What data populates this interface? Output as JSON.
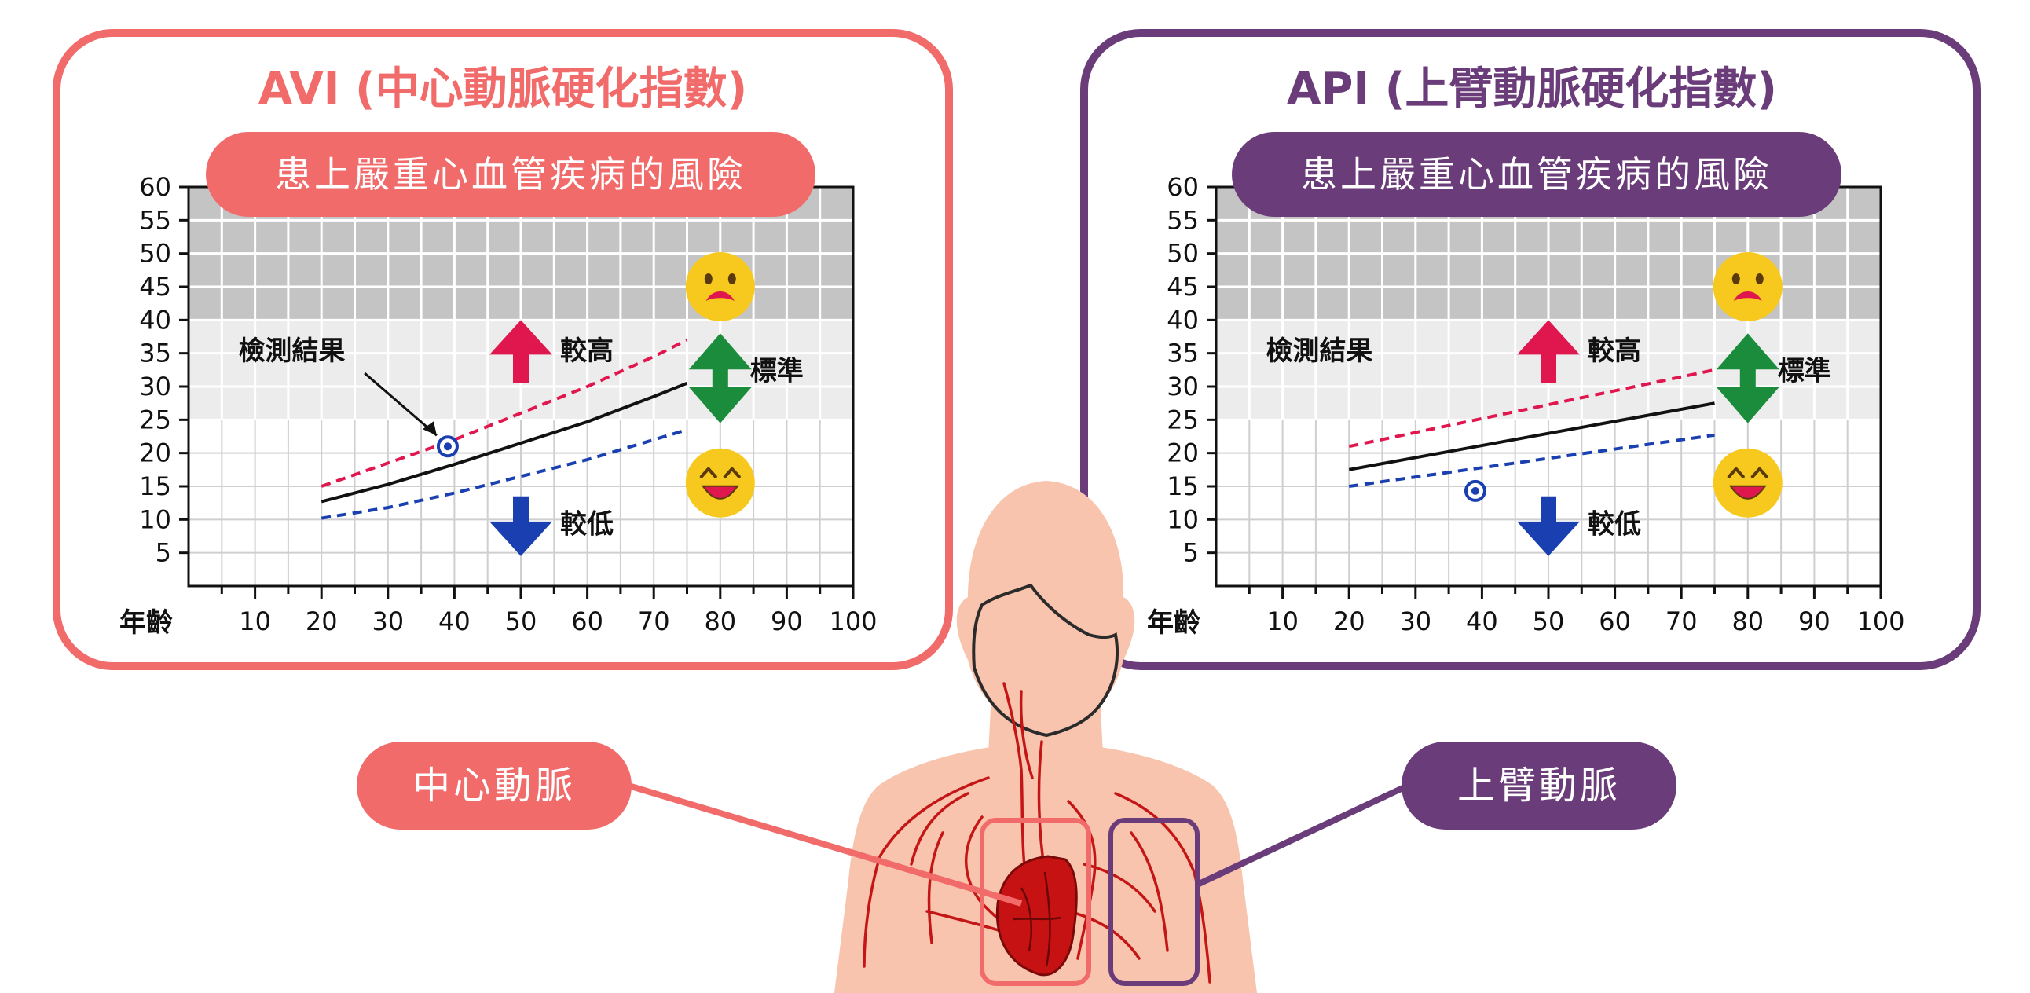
{
  "colors": {
    "avi": "#f26b6b",
    "api": "#6a3c7a",
    "zone_high": "#c4c4c4",
    "zone_mid": "#ececec",
    "grid": "#cfcfcf",
    "upper_line": "#e0174e",
    "lower_line": "#1a3fb0",
    "up_arrow": "#e0174e",
    "down_arrow": "#1a3fb0",
    "both_arrow": "#1a8c3c",
    "emoji": "#f7c81d",
    "skin": "#f9c4ad",
    "artery": "#c41616",
    "heart": "#c61212"
  },
  "icons": {
    "worried": "worried-face-icon",
    "happy": "smiling-face-icon",
    "up": "up-arrow-icon",
    "down": "down-arrow-icon",
    "both": "double-arrow-icon",
    "heart": "heart-icon",
    "marker": "result-marker-icon"
  },
  "panels": {
    "avi": {
      "title": "AVI (中心動脈硬化指數)",
      "banner": "患上嚴重心血管疾病的風險",
      "result_label": "檢測結果",
      "higher_label": "較高",
      "lower_label": "較低",
      "standard_label": "標準",
      "age_label": "年齡"
    },
    "api": {
      "title": "API (上臂動脈硬化指數)",
      "banner": "患上嚴重心血管疾病的風險",
      "result_label": "檢測結果",
      "higher_label": "較高",
      "lower_label": "較低",
      "standard_label": "標準",
      "age_label": "年齡"
    }
  },
  "callouts": {
    "central": "中心動脈",
    "upper_arm": "上臂動脈"
  },
  "chart_data": [
    {
      "type": "line",
      "title": "AVI (中心動脈硬化指數)",
      "xlabel": "年齡",
      "ylabel": "",
      "xlim": [
        0,
        100
      ],
      "ylim": [
        0,
        60
      ],
      "x_ticks": [
        10,
        20,
        30,
        40,
        50,
        60,
        70,
        80,
        90,
        100
      ],
      "y_ticks": [
        5,
        10,
        15,
        20,
        25,
        30,
        35,
        40,
        45,
        50,
        55,
        60
      ],
      "grid": true,
      "zones": [
        {
          "from": 40,
          "to": 60,
          "level": "high"
        },
        {
          "from": 25,
          "to": 40,
          "level": "mid"
        }
      ],
      "series": [
        {
          "style": "dashed",
          "color": "#e0174e",
          "x": [
            20,
            30,
            40,
            50,
            60,
            70,
            75
          ],
          "y": [
            15,
            18.5,
            22,
            26,
            30,
            34.5,
            37
          ]
        },
        {
          "style": "solid",
          "color": "#111111",
          "x": [
            20,
            30,
            40,
            50,
            60,
            70,
            75
          ],
          "y": [
            12.7,
            15.3,
            18.3,
            21.5,
            24.7,
            28.5,
            30.5
          ]
        },
        {
          "style": "dashed",
          "color": "#1a3fb0",
          "x": [
            20,
            30,
            40,
            50,
            60,
            70,
            75
          ],
          "y": [
            10.2,
            11.8,
            14,
            16.5,
            19,
            22,
            23.5
          ]
        }
      ],
      "points": [
        {
          "x": 39,
          "y": 21
        }
      ]
    },
    {
      "type": "line",
      "title": "API (上臂動脈硬化指數)",
      "xlabel": "年齡",
      "ylabel": "",
      "xlim": [
        0,
        100
      ],
      "ylim": [
        0,
        60
      ],
      "x_ticks": [
        10,
        20,
        30,
        40,
        50,
        60,
        70,
        80,
        90,
        100
      ],
      "y_ticks": [
        5,
        10,
        15,
        20,
        25,
        30,
        35,
        40,
        45,
        50,
        55,
        60
      ],
      "grid": true,
      "zones": [
        {
          "from": 40,
          "to": 60,
          "level": "high"
        },
        {
          "from": 25,
          "to": 40,
          "level": "mid"
        }
      ],
      "series": [
        {
          "style": "dashed",
          "color": "#e0174e",
          "x": [
            20,
            75
          ],
          "y": [
            21,
            32.5
          ]
        },
        {
          "style": "solid",
          "color": "#111111",
          "x": [
            20,
            75
          ],
          "y": [
            17.5,
            27.5
          ]
        },
        {
          "style": "dashed",
          "color": "#1a3fb0",
          "x": [
            20,
            75
          ],
          "y": [
            15,
            22.7
          ]
        }
      ],
      "points": [
        {
          "x": 39,
          "y": 14.3
        }
      ]
    }
  ]
}
